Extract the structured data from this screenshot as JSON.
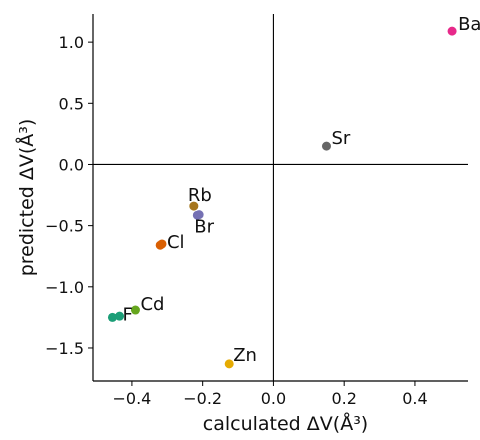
{
  "chart_data": {
    "type": "scatter",
    "title": "",
    "xlabel": "calculated ΔV(Å³)",
    "ylabel": "predicted ΔV(Å³)",
    "xlim": [
      -0.51,
      0.55
    ],
    "ylim": [
      -1.77,
      1.23
    ],
    "x_ticks": [
      -0.4,
      -0.2,
      0.0,
      0.2,
      0.4
    ],
    "x_tick_labels": [
      "−0.4",
      "−0.2",
      "0.0",
      "0.2",
      "0.4"
    ],
    "y_ticks": [
      -1.5,
      -1.0,
      -0.5,
      0.0,
      0.5,
      1.0
    ],
    "y_tick_labels": [
      "−1.5",
      "−1.0",
      "−0.5",
      "0.0",
      "0.5",
      "1.0"
    ],
    "grid": false,
    "reference_lines": {
      "x": 0.0,
      "y": 0.0
    },
    "points": [
      {
        "label": "Ba",
        "x": 0.505,
        "y": 1.09,
        "color": "#e7298a"
      },
      {
        "label": "Sr",
        "x": 0.15,
        "y": 0.15,
        "color": "#666666"
      },
      {
        "label": "Rb",
        "x": -0.225,
        "y": -0.34,
        "color": "#a6761d"
      },
      {
        "label": "Br",
        "x": -0.21,
        "y": -0.41,
        "color": "#7570b3"
      },
      {
        "label": "Cl",
        "x": -0.315,
        "y": -0.65,
        "color": "#d95f02"
      },
      {
        "label": "Cd",
        "x": -0.39,
        "y": -1.19,
        "color": "#66a61e"
      },
      {
        "label": "F",
        "x": -0.455,
        "y": -1.25,
        "color": "#1b9e77"
      },
      {
        "label": "Zn",
        "x": -0.125,
        "y": -1.63,
        "color": "#e6ab02"
      }
    ],
    "extra_marks": [
      {
        "x": -0.32,
        "y": -0.66,
        "color": "#d95f02"
      },
      {
        "x": -0.435,
        "y": -1.24,
        "color": "#1b9e77"
      },
      {
        "x": -0.215,
        "y": -0.415,
        "color": "#7570b3"
      }
    ]
  }
}
